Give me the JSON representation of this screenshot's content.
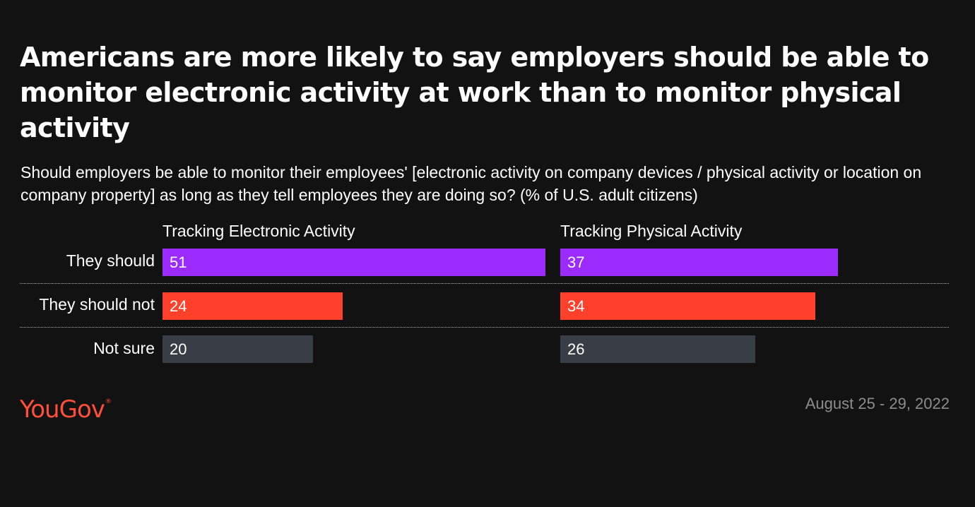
{
  "title": "Americans are more likely to say employers should be able to monitor electronic activity at work than to monitor physical activity",
  "subtitle": "Should employers be able to monitor their employees' [electronic activity on company devices / physical activity or location on company property] as long as they tell employees they are doing so? (% of U.S. adult citizens)",
  "chart_data": {
    "type": "bar",
    "orientation": "horizontal",
    "layout": "small-multiples",
    "categories": [
      "They should",
      "They should not",
      "Not sure"
    ],
    "category_colors": [
      "#9b2bff",
      "#ff412c",
      "#393e46"
    ],
    "series": [
      {
        "name": "Tracking Electronic Activity",
        "values": [
          51,
          24,
          20
        ]
      },
      {
        "name": "Tracking Physical Activity",
        "values": [
          37,
          34,
          26
        ]
      }
    ],
    "xlim": [
      0,
      51
    ],
    "unit": "% of U.S. adult citizens",
    "grid": false,
    "row_dividers": true
  },
  "footer": {
    "logo_text": "YouGov",
    "logo_mark": "®",
    "date": "August 25 - 29, 2022"
  }
}
